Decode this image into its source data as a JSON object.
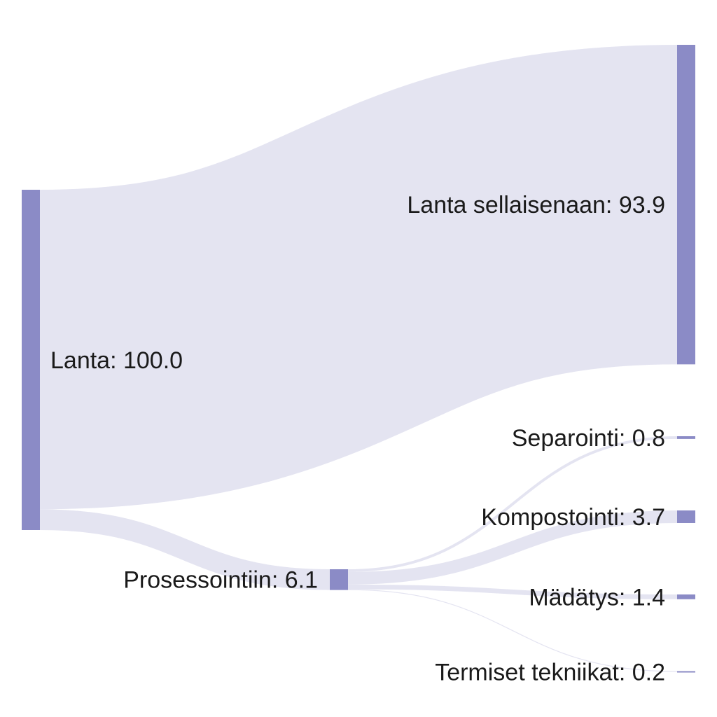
{
  "colors": {
    "node": "#8b8bc6",
    "link": "#e4e4f1",
    "text": "#1a1a1a",
    "background": "#ffffff"
  },
  "nodes": [
    {
      "id": "lanta",
      "label": "Lanta: 100.0",
      "value": 100.0
    },
    {
      "id": "lanta-sellaisenaan",
      "label": "Lanta sellaisenaan: 93.9",
      "value": 93.9
    },
    {
      "id": "prosessointiin",
      "label": "Prosessointiin: 6.1",
      "value": 6.1
    },
    {
      "id": "separointi",
      "label": "Separointi: 0.8",
      "value": 0.8
    },
    {
      "id": "kompostointi",
      "label": "Kompostointi: 3.7",
      "value": 3.7
    },
    {
      "id": "madatys",
      "label": "Mädätys: 1.4",
      "value": 1.4
    },
    {
      "id": "termiset-tekniikat",
      "label": "Termiset tekniikat: 0.2",
      "value": 0.2
    }
  ],
  "links": [
    {
      "source": "lanta",
      "target": "lanta-sellaisenaan",
      "value": 93.9
    },
    {
      "source": "lanta",
      "target": "prosessointiin",
      "value": 6.1
    },
    {
      "source": "prosessointiin",
      "target": "separointi",
      "value": 0.8
    },
    {
      "source": "prosessointiin",
      "target": "kompostointi",
      "value": 3.7
    },
    {
      "source": "prosessointiin",
      "target": "madatys",
      "value": 1.4
    },
    {
      "source": "prosessointiin",
      "target": "termiset-tekniikat",
      "value": 0.2
    }
  ]
}
